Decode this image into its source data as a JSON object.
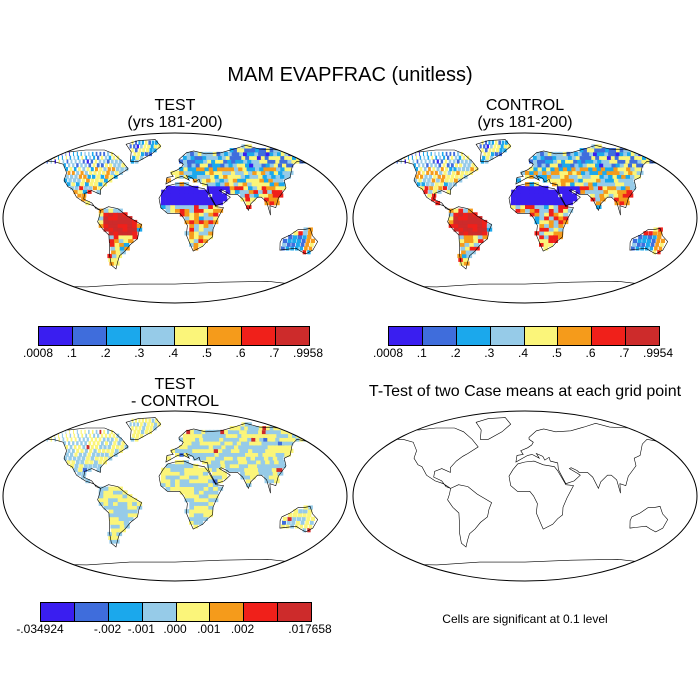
{
  "title": "MAM EVAPFRAC (unitless)",
  "panels": {
    "test": {
      "title_line1": "TEST",
      "title_line2": "(yrs 181-200)"
    },
    "control": {
      "title_line1": "CONTROL",
      "title_line2": "(yrs 181-200)"
    },
    "diff": {
      "title_line1": "TEST",
      "title_line2": "- CONTROL"
    },
    "ttest": {
      "title": "T-Test of two Case means at each grid point",
      "note": "Cells are significant at 0.1 level"
    }
  },
  "colorbars": {
    "test": {
      "colors": [
        "#3a1ef0",
        "#3f6ddc",
        "#1ba8ec",
        "#96cbe8",
        "#fbf57a",
        "#f59b1b",
        "#f0201a",
        "#cd2b2b"
      ],
      "labels": [
        ".0008",
        ".1",
        ".2",
        ".3",
        ".4",
        ".5",
        ".6",
        ".7",
        ".9958"
      ]
    },
    "control": {
      "colors": [
        "#3a1ef0",
        "#3f6ddc",
        "#1ba8ec",
        "#96cbe8",
        "#fbf57a",
        "#f59b1b",
        "#f0201a",
        "#cd2b2b"
      ],
      "labels": [
        ".0008",
        ".1",
        ".2",
        ".3",
        ".4",
        ".5",
        ".6",
        ".7",
        ".9954"
      ]
    },
    "diff": {
      "colors": [
        "#3a1ef0",
        "#3f6ddc",
        "#1ba8ec",
        "#96cbe8",
        "#fbf57a",
        "#f59b1b",
        "#f0201a",
        "#cd2b2b"
      ],
      "labels": [
        "-.034924",
        "",
        "-.002",
        "-.001",
        ".000",
        ".001",
        ".002",
        "",
        ".017658"
      ]
    }
  }
}
